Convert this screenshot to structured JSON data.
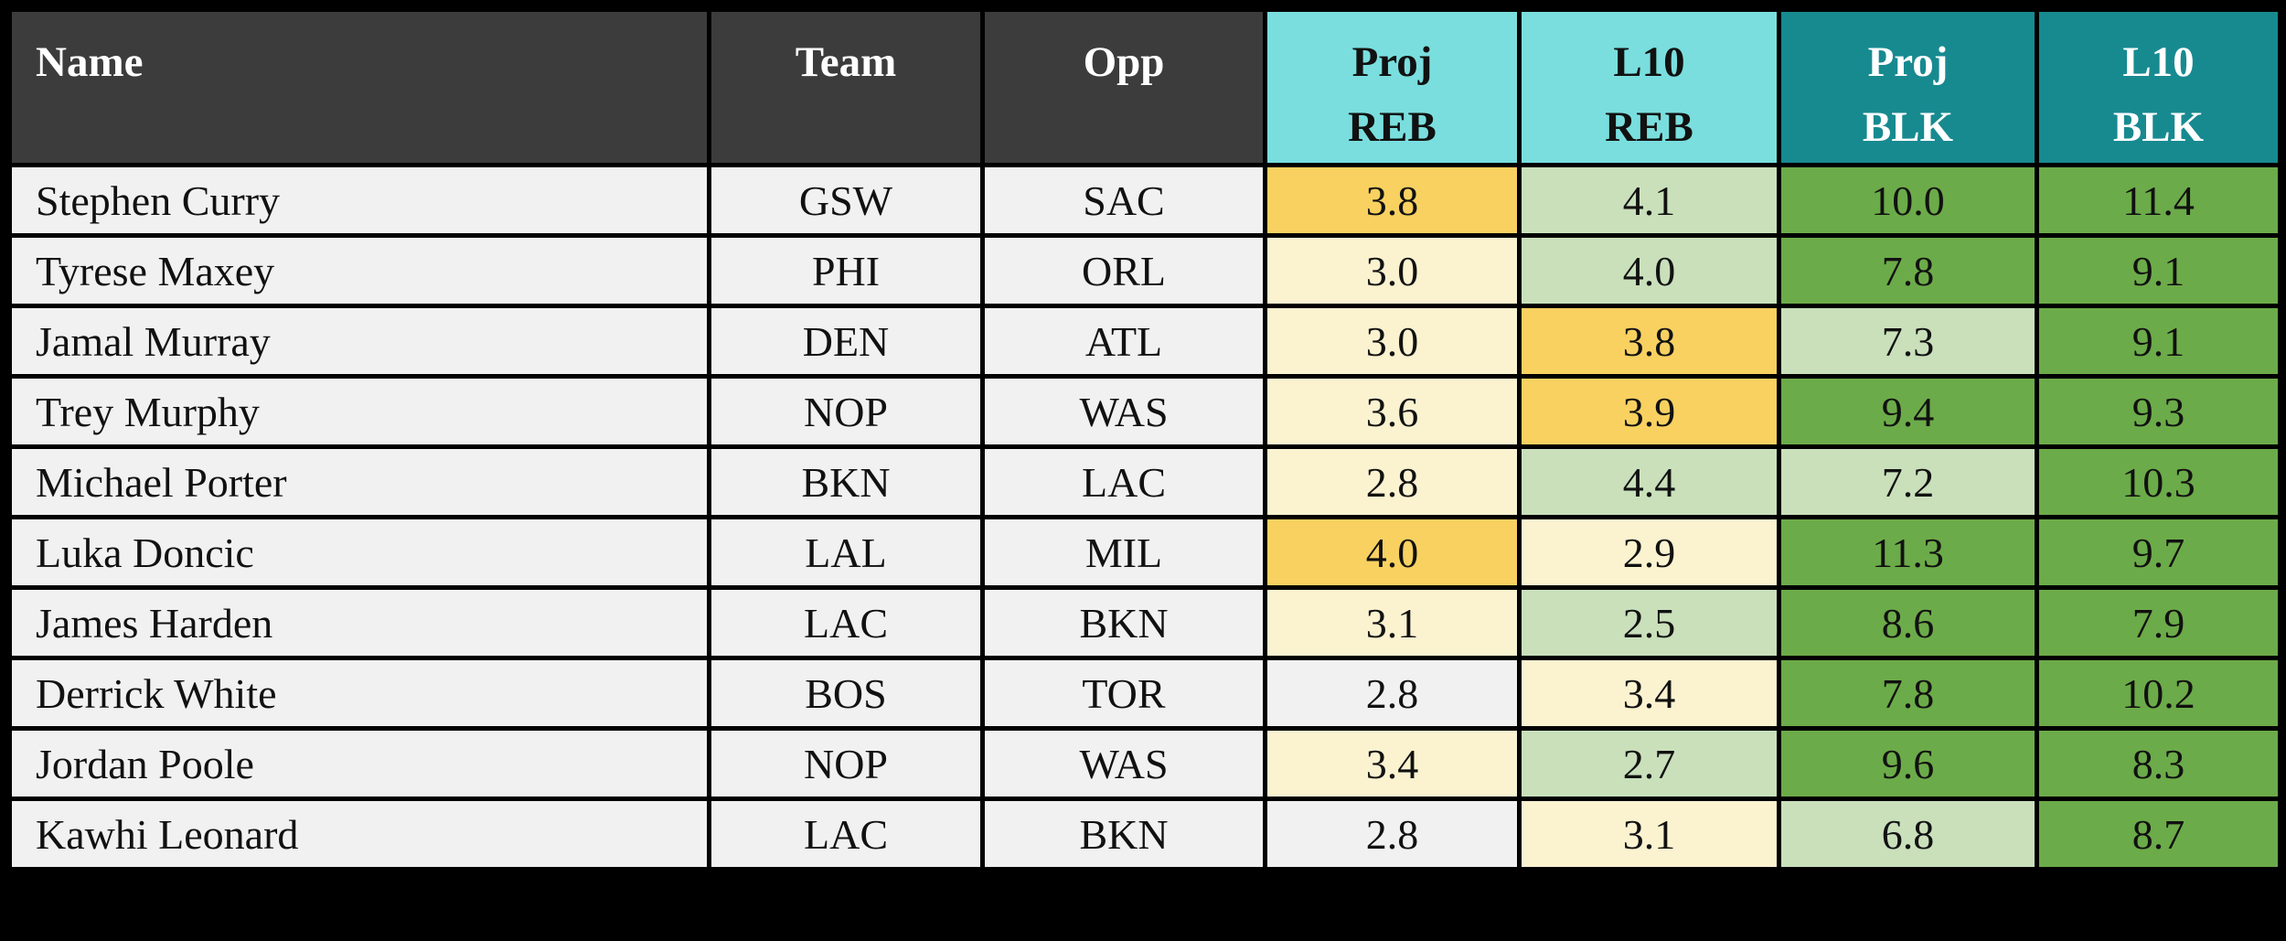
{
  "colors": {
    "header_dark": "#3c3c3c",
    "teal_light": "#7adede",
    "teal_dark": "#178a90",
    "row_plain": "#f1f1f1",
    "gold": "#f8d160",
    "cream": "#fbf2d0",
    "green_light": "#c9e0bb",
    "green": "#6cab49",
    "border": "#000000",
    "header_text_light": "#ffffff",
    "header_text_dark": "#111111"
  },
  "columns": [
    {
      "id": "name",
      "lines": [
        "Name"
      ],
      "header_bg": "header_dark",
      "header_text": "#ffffff",
      "align": "left"
    },
    {
      "id": "team",
      "lines": [
        "Team"
      ],
      "header_bg": "header_dark",
      "header_text": "#ffffff",
      "align": "center"
    },
    {
      "id": "opp",
      "lines": [
        "Opp"
      ],
      "header_bg": "header_dark",
      "header_text": "#ffffff",
      "align": "center"
    },
    {
      "id": "proj_reb",
      "lines": [
        "Proj",
        "REB"
      ],
      "header_bg": "teal_light",
      "header_text": "#111111",
      "align": "center"
    },
    {
      "id": "l10_reb",
      "lines": [
        "L10",
        "REB"
      ],
      "header_bg": "teal_light",
      "header_text": "#111111",
      "align": "center"
    },
    {
      "id": "proj_blk",
      "lines": [
        "Proj",
        "BLK"
      ],
      "header_bg": "teal_dark",
      "header_text": "#ffffff",
      "align": "center"
    },
    {
      "id": "l10_blk",
      "lines": [
        "L10",
        "BLK"
      ],
      "header_bg": "teal_dark",
      "header_text": "#ffffff",
      "align": "center"
    }
  ],
  "rows": [
    {
      "name": "Stephen Curry",
      "team": "GSW",
      "opp": "SAC",
      "proj_reb": {
        "value": "3.8",
        "color": "gold"
      },
      "l10_reb": {
        "value": "4.1",
        "color": "green_light"
      },
      "proj_blk": {
        "value": "10.0",
        "color": "green"
      },
      "l10_blk": {
        "value": "11.4",
        "color": "green"
      }
    },
    {
      "name": "Tyrese Maxey",
      "team": "PHI",
      "opp": "ORL",
      "proj_reb": {
        "value": "3.0",
        "color": "cream"
      },
      "l10_reb": {
        "value": "4.0",
        "color": "green_light"
      },
      "proj_blk": {
        "value": "7.8",
        "color": "green"
      },
      "l10_blk": {
        "value": "9.1",
        "color": "green"
      }
    },
    {
      "name": "Jamal Murray",
      "team": "DEN",
      "opp": "ATL",
      "proj_reb": {
        "value": "3.0",
        "color": "cream"
      },
      "l10_reb": {
        "value": "3.8",
        "color": "gold"
      },
      "proj_blk": {
        "value": "7.3",
        "color": "green_light"
      },
      "l10_blk": {
        "value": "9.1",
        "color": "green"
      }
    },
    {
      "name": "Trey Murphy",
      "team": "NOP",
      "opp": "WAS",
      "proj_reb": {
        "value": "3.6",
        "color": "cream"
      },
      "l10_reb": {
        "value": "3.9",
        "color": "gold"
      },
      "proj_blk": {
        "value": "9.4",
        "color": "green"
      },
      "l10_blk": {
        "value": "9.3",
        "color": "green"
      }
    },
    {
      "name": "Michael Porter",
      "team": "BKN",
      "opp": "LAC",
      "proj_reb": {
        "value": "2.8",
        "color": "cream"
      },
      "l10_reb": {
        "value": "4.4",
        "color": "green_light"
      },
      "proj_blk": {
        "value": "7.2",
        "color": "green_light"
      },
      "l10_blk": {
        "value": "10.3",
        "color": "green"
      }
    },
    {
      "name": "Luka Doncic",
      "team": "LAL",
      "opp": "MIL",
      "proj_reb": {
        "value": "4.0",
        "color": "gold"
      },
      "l10_reb": {
        "value": "2.9",
        "color": "cream"
      },
      "proj_blk": {
        "value": "11.3",
        "color": "green"
      },
      "l10_blk": {
        "value": "9.7",
        "color": "green"
      }
    },
    {
      "name": "James Harden",
      "team": "LAC",
      "opp": "BKN",
      "proj_reb": {
        "value": "3.1",
        "color": "cream"
      },
      "l10_reb": {
        "value": "2.5",
        "color": "green_light"
      },
      "proj_blk": {
        "value": "8.6",
        "color": "green"
      },
      "l10_blk": {
        "value": "7.9",
        "color": "green"
      }
    },
    {
      "name": "Derrick White",
      "team": "BOS",
      "opp": "TOR",
      "proj_reb": {
        "value": "2.8",
        "color": "row_plain"
      },
      "l10_reb": {
        "value": "3.4",
        "color": "cream"
      },
      "proj_blk": {
        "value": "7.8",
        "color": "green"
      },
      "l10_blk": {
        "value": "10.2",
        "color": "green"
      }
    },
    {
      "name": "Jordan Poole",
      "team": "NOP",
      "opp": "WAS",
      "proj_reb": {
        "value": "3.4",
        "color": "cream"
      },
      "l10_reb": {
        "value": "2.7",
        "color": "green_light"
      },
      "proj_blk": {
        "value": "9.6",
        "color": "green"
      },
      "l10_blk": {
        "value": "8.3",
        "color": "green"
      }
    },
    {
      "name": "Kawhi Leonard",
      "team": "LAC",
      "opp": "BKN",
      "proj_reb": {
        "value": "2.8",
        "color": "row_plain"
      },
      "l10_reb": {
        "value": "3.1",
        "color": "cream"
      },
      "proj_blk": {
        "value": "6.8",
        "color": "green_light"
      },
      "l10_blk": {
        "value": "8.7",
        "color": "green"
      }
    }
  ],
  "chart_data": {
    "type": "table",
    "columns": [
      "Name",
      "Team",
      "Opp",
      "Proj REB",
      "L10 REB",
      "Proj BLK",
      "L10 BLK"
    ],
    "rows": [
      [
        "Stephen Curry",
        "GSW",
        "SAC",
        3.8,
        4.1,
        10.0,
        11.4
      ],
      [
        "Tyrese Maxey",
        "PHI",
        "ORL",
        3.0,
        4.0,
        7.8,
        9.1
      ],
      [
        "Jamal Murray",
        "DEN",
        "ATL",
        3.0,
        3.8,
        7.3,
        9.1
      ],
      [
        "Trey Murphy",
        "NOP",
        "WAS",
        3.6,
        3.9,
        9.4,
        9.3
      ],
      [
        "Michael Porter",
        "BKN",
        "LAC",
        2.8,
        4.4,
        7.2,
        10.3
      ],
      [
        "Luka Doncic",
        "LAL",
        "MIL",
        4.0,
        2.9,
        11.3,
        9.7
      ],
      [
        "James Harden",
        "LAC",
        "BKN",
        3.1,
        2.5,
        8.6,
        7.9
      ],
      [
        "Derrick White",
        "BOS",
        "TOR",
        2.8,
        3.4,
        7.8,
        10.2
      ],
      [
        "Jordan Poole",
        "NOP",
        "WAS",
        3.4,
        2.7,
        9.6,
        8.3
      ],
      [
        "Kawhi Leonard",
        "LAC",
        "BKN",
        2.8,
        3.1,
        6.8,
        8.7
      ]
    ],
    "legend_colors": {
      "gold_highlight": "#f8d160",
      "cream": "#fbf2d0",
      "light_green": "#c9e0bb",
      "green": "#6cab49"
    }
  }
}
